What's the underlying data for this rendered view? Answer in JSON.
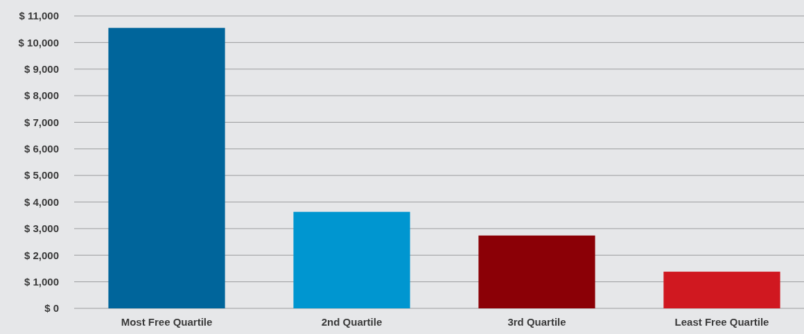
{
  "chart_data": {
    "type": "bar",
    "categories": [
      "Most Free Quartile",
      "2nd Quartile",
      "3rd Quartile",
      "Least Free Quartile"
    ],
    "values": [
      10550,
      3630,
      2740,
      1380
    ],
    "colors": [
      "#00659b",
      "#0096d0",
      "#8b0006",
      "#d01820"
    ],
    "ylim": [
      0,
      11000
    ],
    "yticks": [
      {
        "value": 0,
        "label": "$ 0"
      },
      {
        "value": 1000,
        "label": "$ 1,000"
      },
      {
        "value": 2000,
        "label": "$ 2,000"
      },
      {
        "value": 3000,
        "label": "$ 3,000"
      },
      {
        "value": 4000,
        "label": "$ 4,000"
      },
      {
        "value": 5000,
        "label": "$ 5,000"
      },
      {
        "value": 6000,
        "label": "$ 6,000"
      },
      {
        "value": 7000,
        "label": "$ 7,000"
      },
      {
        "value": 8000,
        "label": "$ 8,000"
      },
      {
        "value": 9000,
        "label": "$ 9,000"
      },
      {
        "value": 10000,
        "label": "$ 10,000"
      },
      {
        "value": 11000,
        "label": "$ 11,000"
      }
    ],
    "grid": "y"
  }
}
